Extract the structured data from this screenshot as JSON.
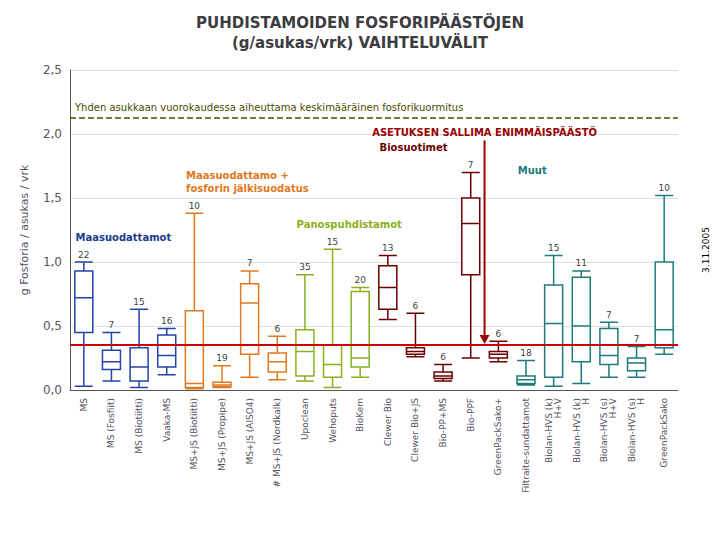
{
  "chart_data": {
    "type": "boxplot",
    "title": "PUHDISTAMOIDEN FOSFORIPÄÄSTÖJEN\n(g/asukas/vrk) VAIHTELUVÄLIT",
    "ylabel": "g Fosforia / asukas / vrk",
    "categories": [
      "MS",
      "MS (Fosfiit)",
      "MS (Biotiitti)",
      "Vaaka-MS",
      "MS+JS (Biotiitti)",
      "MS+JS (Propipe)",
      "MS+JS (AlSO4)",
      "# MS+JS (Nordkalk)",
      "Upoclean",
      "Wehoputs",
      "BioKem",
      "Clewer Bio",
      "Clewer Bio+JS",
      "Bio-PP+MS",
      "Bio-PPF",
      "GreenPackSako+",
      "Filtraite-sundattamot",
      "Biolan-HVS (k)\nH+V",
      "Biolan-HVS (k)\nH",
      "Biolan-HVS (s)\nH+V",
      "Biolan-HVS (s)\nH",
      "GreenPackSako"
    ],
    "values": [
      [
        0.03,
        0.45,
        0.72,
        0.93,
        1.0
      ],
      [
        0.07,
        0.16,
        0.22,
        0.31,
        0.45
      ],
      [
        0.02,
        0.07,
        0.18,
        0.33,
        0.63
      ],
      [
        0.12,
        0.18,
        0.27,
        0.43,
        0.48
      ],
      [
        0.01,
        0.02,
        0.05,
        0.62,
        1.38
      ],
      [
        0.02,
        0.025,
        0.04,
        0.06,
        0.19
      ],
      [
        0.1,
        0.28,
        0.68,
        0.83,
        0.93
      ],
      [
        0.08,
        0.14,
        0.22,
        0.29,
        0.42
      ],
      [
        0.07,
        0.11,
        0.3,
        0.47,
        0.9
      ],
      [
        0.02,
        0.1,
        0.2,
        0.35,
        1.1
      ],
      [
        0.1,
        0.18,
        0.25,
        0.77,
        0.8
      ],
      [
        0.55,
        0.63,
        0.8,
        0.97,
        1.05
      ],
      [
        0.26,
        0.28,
        0.3,
        0.33,
        0.6
      ],
      [
        0.07,
        0.09,
        0.11,
        0.14,
        0.2
      ],
      [
        0.25,
        0.9,
        1.3,
        1.5,
        1.7
      ],
      [
        0.22,
        0.25,
        0.28,
        0.3,
        0.38
      ],
      [
        0.04,
        0.05,
        0.08,
        0.11,
        0.23
      ],
      [
        0.03,
        0.1,
        0.52,
        0.82,
        1.05
      ],
      [
        0.05,
        0.22,
        0.5,
        0.88,
        0.93
      ],
      [
        0.1,
        0.2,
        0.27,
        0.48,
        0.53
      ],
      [
        0.1,
        0.15,
        0.21,
        0.25,
        0.34
      ],
      [
        0.28,
        0.33,
        0.47,
        1.0,
        1.52
      ]
    ],
    "counts": [
      22,
      7,
      15,
      16,
      10,
      19,
      7,
      6,
      35,
      15,
      20,
      13,
      6,
      6,
      7,
      6,
      18,
      15,
      11,
      7,
      7,
      10
    ],
    "colors": [
      "#2244AA",
      "#2244AA",
      "#2244AA",
      "#2244AA",
      "#E07820",
      "#E07820",
      "#E07820",
      "#E07820",
      "#8AB020",
      "#8AB020",
      "#8AB020",
      "#6B0000",
      "#6B0000",
      "#6B0000",
      "#6B0000",
      "#6B0000",
      "#1E7B7B",
      "#1E7B7B",
      "#1E7B7B",
      "#1E7B7B",
      "#1E7B7B",
      "#1E7B7B"
    ],
    "ylim": [
      0,
      2.5
    ],
    "yticks": [
      {
        "value": 0.0,
        "label": "0,0"
      },
      {
        "value": 0.5,
        "label": "0,5"
      },
      {
        "value": 1.0,
        "label": "1,0"
      },
      {
        "value": 1.5,
        "label": "1,5"
      },
      {
        "value": 2.0,
        "label": "2,0"
      },
      {
        "value": 2.5,
        "label": "2,5"
      }
    ],
    "grid": true,
    "reference_lines": [
      {
        "y": 2.13,
        "label": "Yhden asukkaan vuorokaudessa aiheuttama keskimääräinen fosforikuormitus",
        "color": "#4B4B00",
        "line_style": "dashed"
      },
      {
        "y": 0.35,
        "color": "#CC0000",
        "line_style": "solid"
      }
    ],
    "arrow": {
      "category": "Bio-PPF",
      "from": 1.95,
      "to": 0.36,
      "label": "ASETUKSEN SALLIMA ENIMMÄISPÄÄSTÖ",
      "color": "#990000"
    },
    "annotations": [
      {
        "text": "Maasuodattamot",
        "category": "MS",
        "last_category": "Vaaka-MS",
        "color": "#1B3A8C"
      },
      {
        "text": "Maasuodattamo +\nfosforin jälkisuodatus",
        "category": "MS+JS (Biotiitti)",
        "last_category": "# MS+JS (Nordkalk)",
        "color": "#E07820"
      },
      {
        "text": "Panospuhdistamot",
        "category": "Upoclean",
        "last_category": "BioKem",
        "color": "#8AB020"
      },
      {
        "text": "Biosuotimet",
        "category": "Clewer Bio",
        "last_category": "GreenPackSako+",
        "color": "#6B0000"
      },
      {
        "text": "Muut",
        "category": "Filtraite-sundattamot",
        "last_category": "GreenPackSako",
        "color": "#1E7B7B"
      }
    ],
    "watermark": "3.11.2005"
  }
}
